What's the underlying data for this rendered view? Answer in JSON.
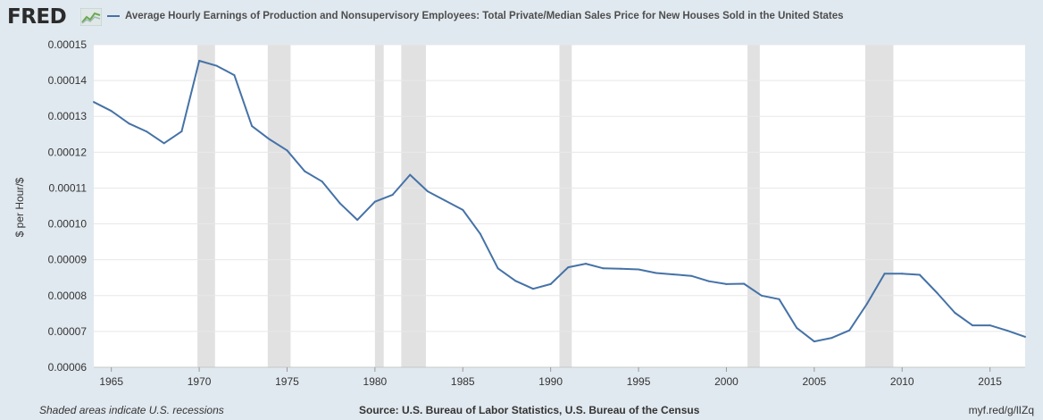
{
  "app": {
    "logo": "FRED",
    "source_note": "Source: U.S. Bureau of Labor Statistics, U.S. Bureau of the Census",
    "recession_note": "Shaded areas indicate U.S. recessions",
    "short_url": "myf.red/g/lIZq"
  },
  "colors": {
    "background": "#e1e9f0",
    "plot_background": "#ffffff",
    "series": "#4572a7",
    "recession": "#e1e1e1",
    "grid": "#e8e8e8"
  },
  "chart_data": {
    "type": "line",
    "title": "",
    "xlabel": "",
    "ylabel": "$ per Hour/$",
    "xlim": [
      1964,
      2017
    ],
    "ylim": [
      6e-05,
      0.00015
    ],
    "grid": "horizontal",
    "legend_placement": "top-left",
    "x_ticks": [
      "1965",
      "1970",
      "1975",
      "1980",
      "1985",
      "1990",
      "1995",
      "2000",
      "2005",
      "2010",
      "2015"
    ],
    "y_ticks": [
      "0.00006",
      "0.00007",
      "0.00008",
      "0.00009",
      "0.00010",
      "0.00011",
      "0.00012",
      "0.00013",
      "0.00014",
      "0.00015"
    ],
    "recessions": [
      [
        1969.9,
        1970.9
      ],
      [
        1973.9,
        1975.2
      ],
      [
        1980.0,
        1980.5
      ],
      [
        1981.5,
        1982.9
      ],
      [
        1990.5,
        1991.2
      ],
      [
        2001.2,
        2001.9
      ],
      [
        2007.9,
        2009.5
      ]
    ],
    "series": [
      {
        "name": "Average Hourly Earnings of Production and Nonsupervisory Employees: Total Private/Median Sales Price for New Houses Sold in the United States",
        "x": [
          1964,
          1965,
          1966,
          1967,
          1968,
          1969,
          1970,
          1971,
          1972,
          1973,
          1974,
          1975,
          1976,
          1977,
          1978,
          1979,
          1980,
          1981,
          1982,
          1983,
          1984,
          1985,
          1986,
          1987,
          1988,
          1989,
          1990,
          1991,
          1992,
          1993,
          1994,
          1995,
          1996,
          1997,
          1998,
          1999,
          2000,
          2001,
          2002,
          2003,
          2004,
          2005,
          2006,
          2007,
          2008,
          2009,
          2010,
          2011,
          2012,
          2013,
          2014,
          2015,
          2016,
          2017
        ],
        "values": [
          0.000134,
          0.0001315,
          0.000128,
          0.0001258,
          0.0001225,
          0.0001258,
          0.0001455,
          0.0001441,
          0.0001415,
          0.0001273,
          0.0001236,
          0.0001205,
          0.0001147,
          0.0001118,
          0.0001058,
          0.0001011,
          0.0001062,
          0.0001081,
          0.0001137,
          0.0001091,
          0.0001065,
          0.0001039,
          9.72e-05,
          8.76e-05,
          8.41e-05,
          8.19e-05,
          8.32e-05,
          8.79e-05,
          8.89e-05,
          8.76e-05,
          8.75e-05,
          8.73e-05,
          8.63e-05,
          8.59e-05,
          8.55e-05,
          8.4e-05,
          8.32e-05,
          8.33e-05,
          8e-05,
          7.9e-05,
          7.1e-05,
          6.72e-05,
          6.82e-05,
          7.03e-05,
          7.77e-05,
          8.61e-05,
          8.61e-05,
          8.58e-05,
          8.07e-05,
          7.52e-05,
          7.17e-05,
          7.17e-05,
          7.02e-05,
          6.85e-05
        ]
      }
    ]
  }
}
